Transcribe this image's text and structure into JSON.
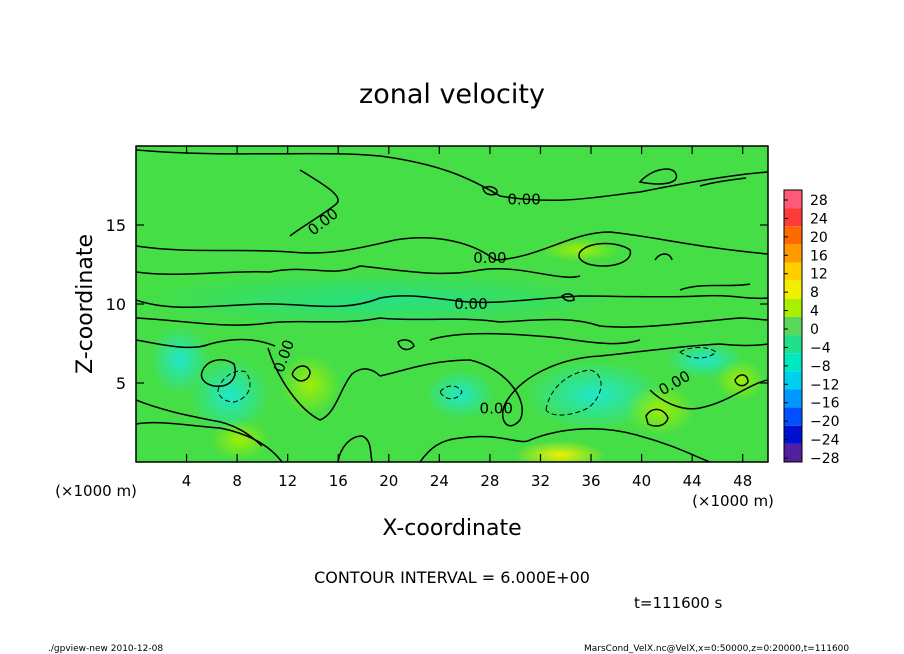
{
  "chart_data": {
    "type": "heatmap",
    "title": "zonal velocity",
    "xlabel": "X-coordinate",
    "ylabel": "Z-coordinate",
    "x_unit_label": "(×1000 m)",
    "y_unit_label": "(×1000 m)",
    "x_ticks": [
      4,
      8,
      12,
      16,
      20,
      24,
      28,
      32,
      36,
      40,
      44,
      48
    ],
    "y_ticks": [
      5,
      10,
      15
    ],
    "xlim": [
      0,
      50
    ],
    "ylim": [
      0,
      20
    ],
    "colorbar": {
      "levels": [
        28,
        24,
        20,
        16,
        12,
        8,
        4,
        0,
        -4,
        -8,
        -12,
        -16,
        -20,
        -24,
        -28
      ],
      "level_labels": [
        "28",
        "24",
        "20",
        "16",
        "12",
        "8",
        "4",
        "0",
        "−4",
        "−8",
        "−12",
        "−16",
        "−20",
        "−24",
        "−28"
      ],
      "colors": [
        "#ff5a7a",
        "#ff3a3a",
        "#ff6a00",
        "#ff9a00",
        "#ffd000",
        "#f0f000",
        "#a8f000",
        "#5ad85a",
        "#22e08a",
        "#00e8c0",
        "#00d0f0",
        "#0098ff",
        "#0050ff",
        "#0010d0",
        "#5020a0"
      ]
    },
    "contour_labels": [
      {
        "x": 30.7,
        "y": 16.6,
        "text": "0.00"
      },
      {
        "x": 14.8,
        "y": 15.2,
        "text": "0.00"
      },
      {
        "x": 28.0,
        "y": 12.9,
        "text": "0.00"
      },
      {
        "x": 26.5,
        "y": 10.0,
        "text": "0.00"
      },
      {
        "x": 11.7,
        "y": 6.7,
        "text": "0.00"
      },
      {
        "x": 28.5,
        "y": 3.4,
        "text": "0.00"
      },
      {
        "x": 42.6,
        "y": 5.0,
        "text": "0.00"
      }
    ]
  },
  "contour_interval_text": "CONTOUR INTERVAL = 6.000E+00",
  "time_text": "t=111600 s",
  "footer_left": "./gpview-new  2010-12-08",
  "footer_right": "MarsCond_VelX.nc@VelX,x=0:50000,z=0:20000,t=111600"
}
